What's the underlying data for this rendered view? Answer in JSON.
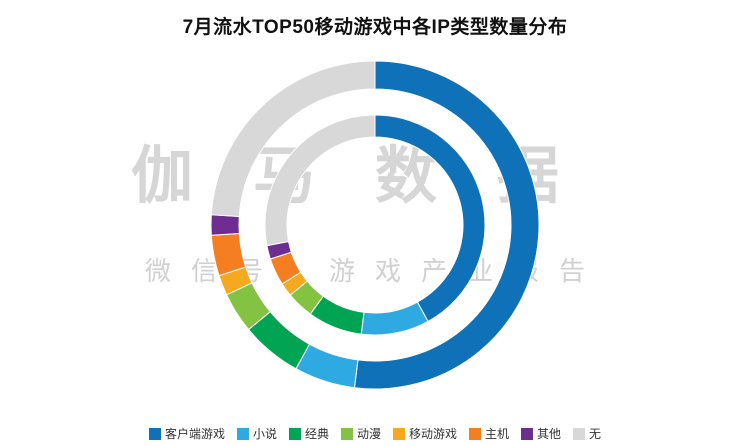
{
  "watermark": {
    "line1": "伽马数据",
    "line2": "微信号：游戏产业报告"
  },
  "chart_data": {
    "type": "pie",
    "variant": "double-ring-donut",
    "title": "7月流水TOP50移动游戏中各IP类型数量分布",
    "categories": [
      "客户端游戏",
      "小说",
      "经典",
      "动漫",
      "移动游戏",
      "主机",
      "其他",
      "无"
    ],
    "colors": [
      "#0f71b8",
      "#2fa9e1",
      "#00a453",
      "#84c341",
      "#f5a91f",
      "#f57e20",
      "#6d2d91",
      "#d8d8d8"
    ],
    "series": [
      {
        "name": "outer_ring",
        "values": [
          26,
          3,
          3,
          2,
          1,
          2,
          1,
          12
        ]
      },
      {
        "name": "inner_ring",
        "values": [
          21,
          5,
          4,
          2,
          1,
          2,
          1,
          14
        ]
      }
    ],
    "total": 50,
    "start_angle": 0,
    "direction": "clockwise",
    "legend_position": "bottom",
    "background": "#ffffff"
  }
}
